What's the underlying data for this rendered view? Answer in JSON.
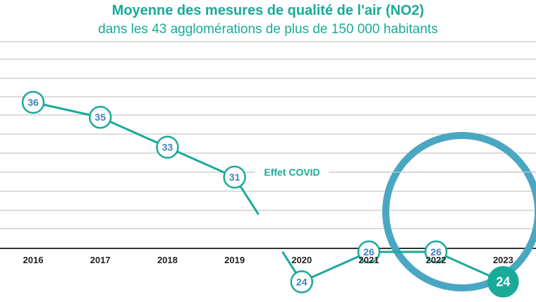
{
  "header": {
    "title": "Moyenne des mesures de qualité de l'air (NO2)",
    "subtitle": "dans les 43 agglomérations de plus de 150 000 habitants"
  },
  "chart_data": {
    "type": "line",
    "categories": [
      "2016",
      "2017",
      "2018",
      "2019",
      "2020",
      "2021",
      "2022",
      "2023"
    ],
    "series": [
      {
        "values": [
          36,
          35,
          33,
          31,
          24,
          26,
          26,
          24
        ]
      }
    ],
    "data_labels": [
      "36",
      "35",
      "33",
      "31",
      "24",
      "26",
      "26",
      "24"
    ],
    "annotations": [
      {
        "text": "Effet COVID",
        "between": [
          "2019",
          "2020"
        ]
      }
    ],
    "highlight": {
      "categories": [
        "2022",
        "2023"
      ],
      "shape": "circle",
      "color": "#4aa7c2"
    },
    "title": "Moyenne des mesures de qualité de l'air (NO2)",
    "subtitle": "dans les 43 agglomérations de plus de 150 000 habitants",
    "xlabel": "",
    "ylabel": "",
    "grid": true,
    "legend": "none",
    "colors": {
      "line": "#1aaa99",
      "marker_text": "#3f7fbf",
      "last_marker_fill": "#1aaa99",
      "grid": "#c8c8c8",
      "axis": "#333333"
    }
  }
}
